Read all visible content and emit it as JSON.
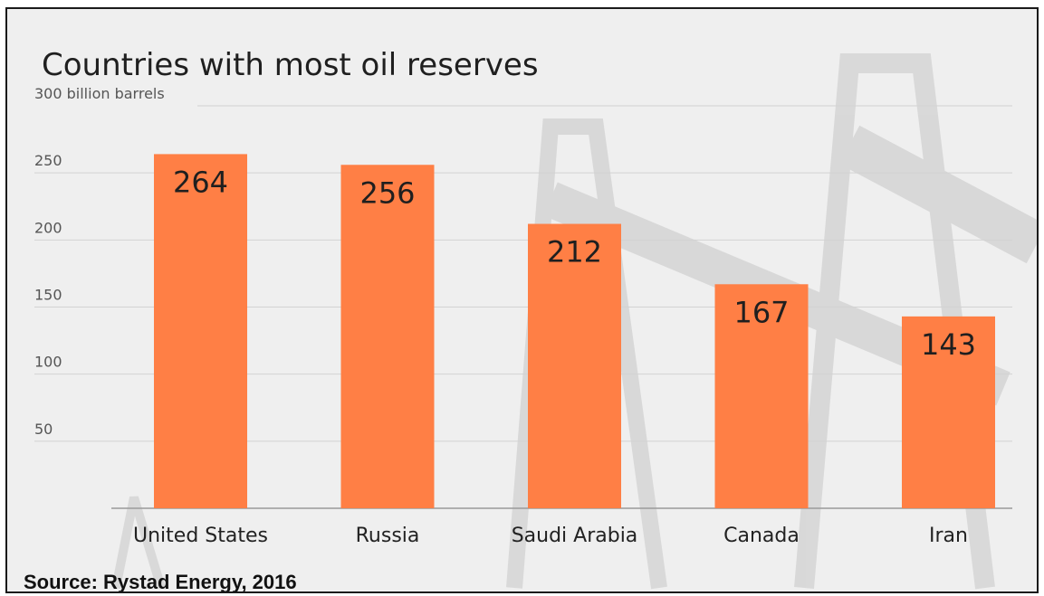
{
  "chart_data": {
    "type": "bar",
    "title": "Countries with most oil reserves",
    "ylabel": "300 billion barrels",
    "categories": [
      "United States",
      "Russia",
      "Saudi Arabia",
      "Canada",
      "Iran"
    ],
    "values": [
      264,
      256,
      212,
      167,
      143
    ],
    "ylim": [
      0,
      300
    ],
    "yticks": [
      {
        "value": 50,
        "label": "50"
      },
      {
        "value": 100,
        "label": "100"
      },
      {
        "value": 150,
        "label": "150"
      },
      {
        "value": 200,
        "label": "200"
      },
      {
        "value": 250,
        "label": "250"
      },
      {
        "value": 300,
        "label": "300 billion barrels"
      }
    ],
    "grid": true,
    "bar_color": "#ff7f45",
    "background_color": "#efefef"
  },
  "source": "Source: Rystad Energy, 2016"
}
